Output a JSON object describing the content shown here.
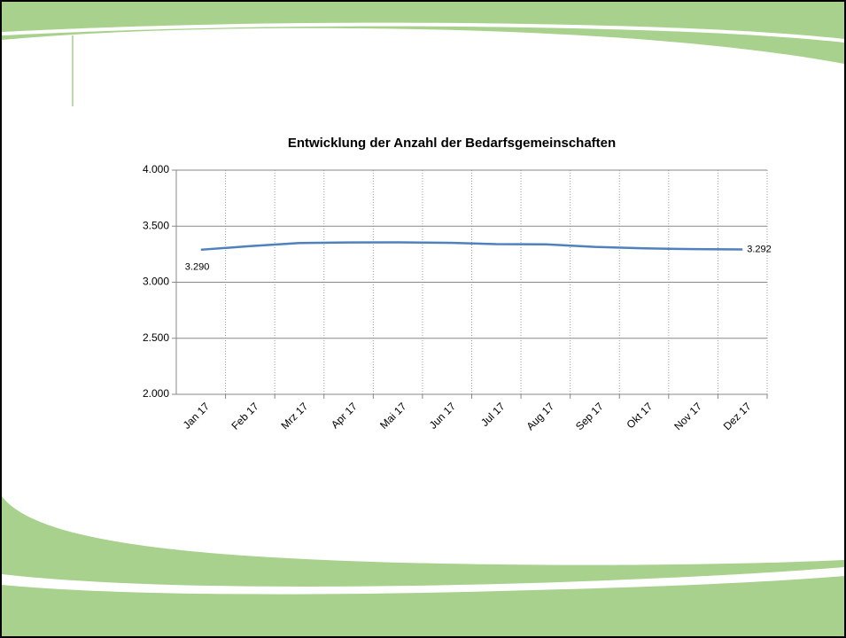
{
  "chart_data": {
    "type": "line",
    "title": "Entwicklung der Anzahl der Bedarfsgemeinschaften",
    "categories": [
      "Jan 17",
      "Feb 17",
      "Mrz 17",
      "Apr 17",
      "Mai 17",
      "Jun 17",
      "Jul 17",
      "Aug 17",
      "Sep 17",
      "Okt 17",
      "Nov 17",
      "Dez 17"
    ],
    "series": [
      {
        "name": "Bedarfsgemeinschaften",
        "color": "#4f81bd",
        "values": [
          3290,
          3322,
          3350,
          3355,
          3356,
          3352,
          3340,
          3338,
          3315,
          3302,
          3295,
          3292
        ],
        "value_labels": [
          "3.290",
          null,
          null,
          null,
          null,
          null,
          null,
          null,
          null,
          null,
          null,
          "3.292"
        ]
      }
    ],
    "ylim": [
      2000,
      4000
    ],
    "yticks": [
      {
        "value": 2000,
        "label": "2.000"
      },
      {
        "value": 2500,
        "label": "2.500"
      },
      {
        "value": 3000,
        "label": "3.000"
      },
      {
        "value": 3500,
        "label": "3.500"
      },
      {
        "value": 4000,
        "label": "4.000"
      }
    ],
    "grid": true,
    "legend": false
  }
}
